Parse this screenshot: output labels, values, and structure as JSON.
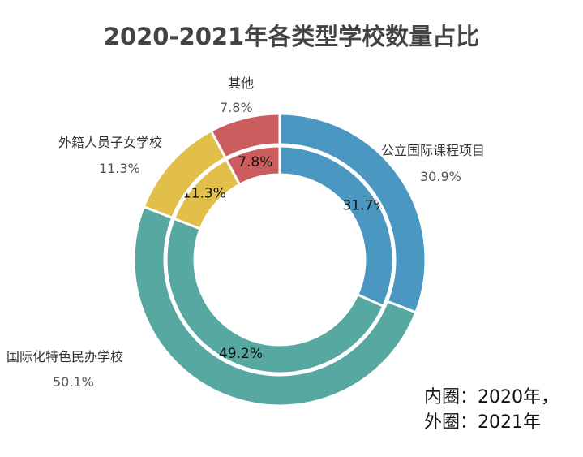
{
  "chart_data": {
    "type": "pie",
    "title": "2020-2021年各类型学校数量占比",
    "categories": [
      "公立国际课程项目",
      "国际化特色民办学校",
      "外籍人员子女学校",
      "其他"
    ],
    "colors": [
      "#4a97c2",
      "#57a8a0",
      "#e2bf4a",
      "#cb5d5f"
    ],
    "series": [
      {
        "name": "2020年",
        "ring": "inner",
        "values": [
          31.7,
          49.2,
          11.3,
          7.8
        ],
        "labels": [
          "31.7%",
          "49.2%",
          "11.3%",
          "7.8%"
        ]
      },
      {
        "name": "2021年",
        "ring": "outer",
        "values": [
          30.9,
          50.1,
          11.3,
          7.8
        ],
        "labels": [
          "30.9%",
          "50.1%",
          "11.3%",
          "7.8%"
        ]
      }
    ],
    "note_line1": "内圈：2020年，",
    "note_line2": "外圈：2021年"
  }
}
